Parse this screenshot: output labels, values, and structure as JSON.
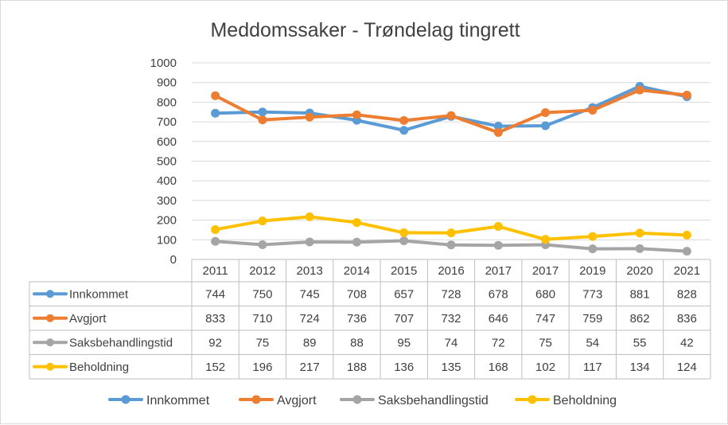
{
  "chart_data": {
    "type": "line",
    "title": "Meddomssaker - Trøndelag tingrett",
    "categories": [
      "2011",
      "2012",
      "2013",
      "2014",
      "2015",
      "2016",
      "2017",
      "2017",
      "2019",
      "2020",
      "2021"
    ],
    "y_ticks": [
      "0",
      "100",
      "200",
      "300",
      "400",
      "500",
      "600",
      "700",
      "800",
      "900",
      "1000"
    ],
    "ylim": [
      0,
      1000
    ],
    "grid": true,
    "legend_position": "bottom",
    "series": [
      {
        "name": "Innkommet",
        "color": "#5b9bd5",
        "values": [
          744,
          750,
          745,
          708,
          657,
          728,
          678,
          680,
          773,
          881,
          828
        ]
      },
      {
        "name": "Avgjort",
        "color": "#ed7d31",
        "values": [
          833,
          710,
          724,
          736,
          707,
          732,
          646,
          747,
          759,
          862,
          836
        ]
      },
      {
        "name": "Saksbehandlingstid",
        "color": "#a5a5a5",
        "values": [
          92,
          75,
          89,
          88,
          95,
          74,
          72,
          75,
          54,
          55,
          42
        ]
      },
      {
        "name": "Beholdning",
        "color": "#ffc000",
        "values": [
          152,
          196,
          217,
          188,
          136,
          135,
          168,
          102,
          117,
          134,
          124
        ]
      }
    ]
  }
}
